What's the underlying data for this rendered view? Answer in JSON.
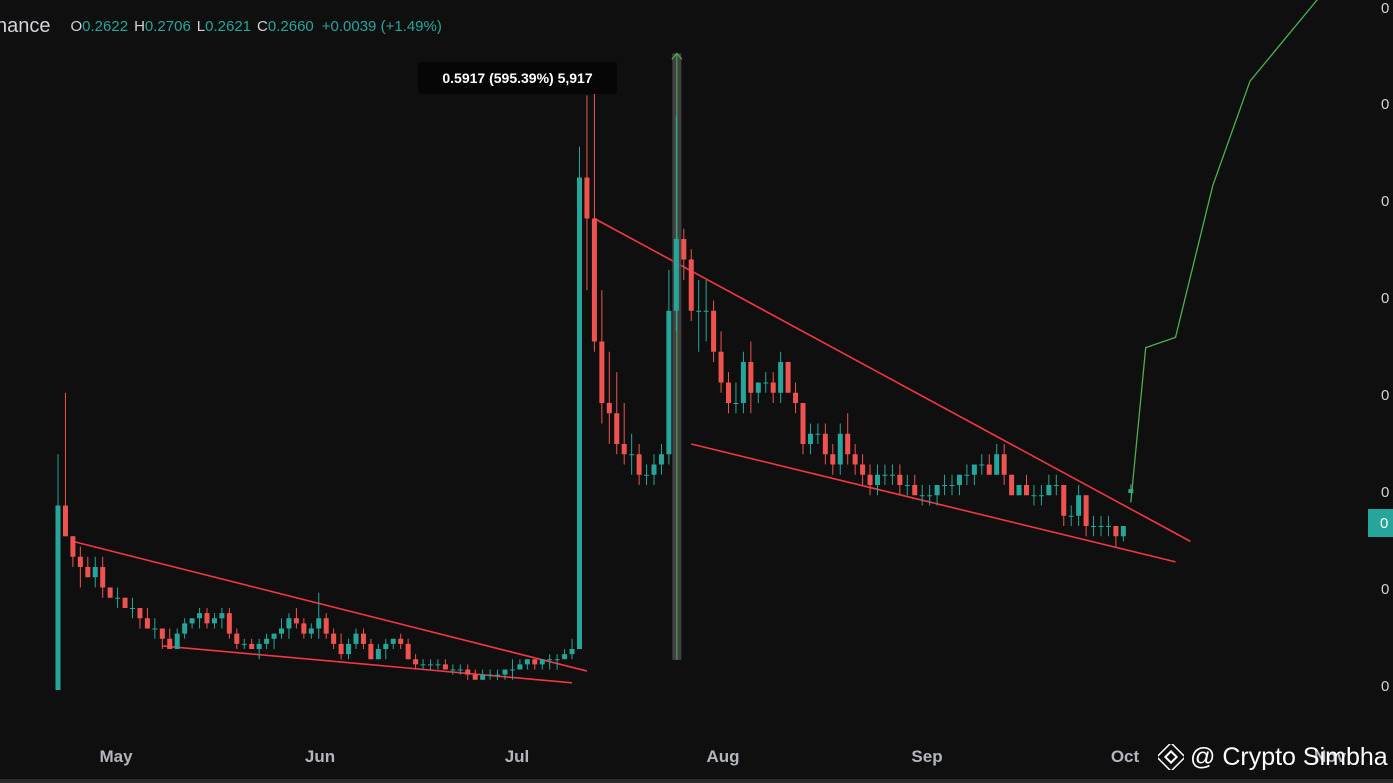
{
  "header": {
    "symbol": "nance",
    "open_label": "O",
    "open": "0.2622",
    "high_label": "H",
    "high": "0.2706",
    "low_label": "L",
    "low": "0.2621",
    "close_label": "C",
    "close": "0.2660",
    "change": "+0.0039 (+1.49%)"
  },
  "measure_label": "0.5917 (595.39%) 5,917",
  "price_tag": "0",
  "watermark": "@ Crypto Simbha",
  "colors": {
    "background": "#0f0f0f",
    "up": "#26a69a",
    "down": "#ef5350",
    "trendline": "#f23645",
    "projection": "#4caf50",
    "text": "#d1d4dc"
  },
  "chart_data": {
    "type": "candlestick",
    "x_tick_labels": [
      "May",
      "Jun",
      "Jul",
      "Aug",
      "Sep",
      "Oct",
      "Nov"
    ],
    "y_tick_labels": [
      "0",
      "0",
      "0",
      "0",
      "0",
      "0",
      "0",
      "0"
    ],
    "y_range": [
      0.05,
      0.8
    ],
    "x_range_days": [
      0,
      214
    ],
    "price_scale": "TradingView, Binance daily",
    "base_price": 0.0994,
    "base_day": 83,
    "measurement": {
      "from_price": 0.0994,
      "to_price": 0.6911,
      "change": 0.5917,
      "percent": 595.39,
      "ticks": 5917
    },
    "candles": [
      [
        0,
        0.07,
        0.3,
        0.07,
        0.25
      ],
      [
        1,
        0.25,
        0.36,
        0.22,
        0.22
      ],
      [
        2,
        0.22,
        0.22,
        0.19,
        0.2
      ],
      [
        3,
        0.2,
        0.21,
        0.17,
        0.19
      ],
      [
        4,
        0.19,
        0.2,
        0.18,
        0.18
      ],
      [
        5,
        0.18,
        0.2,
        0.17,
        0.19
      ],
      [
        6,
        0.19,
        0.2,
        0.16,
        0.17
      ],
      [
        7,
        0.17,
        0.17,
        0.16,
        0.16
      ],
      [
        8,
        0.16,
        0.17,
        0.15,
        0.16
      ],
      [
        9,
        0.16,
        0.16,
        0.15,
        0.15
      ],
      [
        10,
        0.15,
        0.16,
        0.14,
        0.15
      ],
      [
        11,
        0.15,
        0.15,
        0.13,
        0.14
      ],
      [
        12,
        0.14,
        0.15,
        0.13,
        0.13
      ],
      [
        13,
        0.13,
        0.14,
        0.12,
        0.13
      ],
      [
        14,
        0.13,
        0.13,
        0.11,
        0.12
      ],
      [
        15,
        0.12,
        0.13,
        0.11,
        0.11
      ],
      [
        16,
        0.11,
        0.13,
        0.11,
        0.125
      ],
      [
        17,
        0.125,
        0.14,
        0.12,
        0.135
      ],
      [
        18,
        0.135,
        0.14,
        0.13,
        0.14
      ],
      [
        19,
        0.14,
        0.15,
        0.13,
        0.145
      ],
      [
        20,
        0.145,
        0.15,
        0.13,
        0.135
      ],
      [
        21,
        0.135,
        0.145,
        0.13,
        0.14
      ],
      [
        22,
        0.14,
        0.15,
        0.13,
        0.145
      ],
      [
        23,
        0.145,
        0.15,
        0.12,
        0.125
      ],
      [
        24,
        0.125,
        0.13,
        0.11,
        0.115
      ],
      [
        25,
        0.115,
        0.12,
        0.11,
        0.115
      ],
      [
        26,
        0.115,
        0.12,
        0.11,
        0.11
      ],
      [
        27,
        0.11,
        0.12,
        0.1,
        0.115
      ],
      [
        28,
        0.115,
        0.125,
        0.11,
        0.12
      ],
      [
        29,
        0.12,
        0.125,
        0.11,
        0.125
      ],
      [
        30,
        0.125,
        0.14,
        0.12,
        0.13
      ],
      [
        31,
        0.13,
        0.145,
        0.12,
        0.14
      ],
      [
        32,
        0.14,
        0.15,
        0.13,
        0.135
      ],
      [
        33,
        0.135,
        0.14,
        0.12,
        0.125
      ],
      [
        34,
        0.125,
        0.135,
        0.12,
        0.13
      ],
      [
        35,
        0.13,
        0.165,
        0.12,
        0.14
      ],
      [
        36,
        0.14,
        0.145,
        0.12,
        0.125
      ],
      [
        37,
        0.125,
        0.13,
        0.11,
        0.115
      ],
      [
        38,
        0.115,
        0.125,
        0.1,
        0.105
      ],
      [
        39,
        0.105,
        0.12,
        0.1,
        0.115
      ],
      [
        40,
        0.115,
        0.13,
        0.11,
        0.125
      ],
      [
        41,
        0.125,
        0.13,
        0.11,
        0.115
      ],
      [
        42,
        0.115,
        0.12,
        0.1,
        0.1
      ],
      [
        43,
        0.1,
        0.115,
        0.1,
        0.11
      ],
      [
        44,
        0.11,
        0.12,
        0.1,
        0.115
      ],
      [
        45,
        0.115,
        0.12,
        0.11,
        0.12
      ],
      [
        46,
        0.12,
        0.125,
        0.11,
        0.115
      ],
      [
        47,
        0.115,
        0.12,
        0.1,
        0.1
      ],
      [
        48,
        0.1,
        0.105,
        0.09,
        0.095
      ],
      [
        49,
        0.095,
        0.1,
        0.09,
        0.095
      ],
      [
        50,
        0.095,
        0.1,
        0.09,
        0.095
      ],
      [
        51,
        0.095,
        0.1,
        0.09,
        0.095
      ],
      [
        52,
        0.095,
        0.1,
        0.09,
        0.09
      ],
      [
        53,
        0.09,
        0.095,
        0.085,
        0.09
      ],
      [
        54,
        0.09,
        0.095,
        0.085,
        0.09
      ],
      [
        55,
        0.09,
        0.095,
        0.08,
        0.085
      ],
      [
        56,
        0.085,
        0.09,
        0.08,
        0.08
      ],
      [
        57,
        0.08,
        0.09,
        0.08,
        0.085
      ],
      [
        58,
        0.085,
        0.09,
        0.08,
        0.085
      ],
      [
        59,
        0.085,
        0.09,
        0.08,
        0.085
      ],
      [
        60,
        0.085,
        0.09,
        0.08,
        0.09
      ],
      [
        61,
        0.09,
        0.1,
        0.08,
        0.09
      ],
      [
        62,
        0.09,
        0.1,
        0.09,
        0.095
      ],
      [
        63,
        0.095,
        0.1,
        0.09,
        0.1
      ],
      [
        64,
        0.1,
        0.1,
        0.09,
        0.095
      ],
      [
        65,
        0.095,
        0.1,
        0.09,
        0.1
      ],
      [
        66,
        0.1,
        0.105,
        0.09,
        0.1
      ],
      [
        67,
        0.1,
        0.105,
        0.09,
        0.1
      ],
      [
        68,
        0.1,
        0.11,
        0.1,
        0.105
      ],
      [
        69,
        0.105,
        0.12,
        0.1,
        0.11
      ],
      [
        70,
        0.11,
        0.6,
        0.11,
        0.57
      ],
      [
        71,
        0.57,
        0.65,
        0.46,
        0.53
      ],
      [
        72,
        0.53,
        0.66,
        0.4,
        0.41
      ],
      [
        73,
        0.41,
        0.46,
        0.33,
        0.35
      ],
      [
        74,
        0.35,
        0.4,
        0.31,
        0.34
      ],
      [
        75,
        0.34,
        0.38,
        0.3,
        0.31
      ],
      [
        76,
        0.31,
        0.35,
        0.29,
        0.3
      ],
      [
        77,
        0.3,
        0.32,
        0.28,
        0.3
      ],
      [
        78,
        0.3,
        0.31,
        0.27,
        0.28
      ],
      [
        79,
        0.28,
        0.29,
        0.27,
        0.28
      ],
      [
        80,
        0.28,
        0.3,
        0.27,
        0.29
      ],
      [
        81,
        0.29,
        0.31,
        0.28,
        0.3
      ],
      [
        82,
        0.3,
        0.48,
        0.29,
        0.44
      ],
      [
        83,
        0.44,
        0.63,
        0.42,
        0.51
      ],
      [
        84,
        0.51,
        0.52,
        0.47,
        0.49
      ],
      [
        85,
        0.49,
        0.5,
        0.43,
        0.44
      ],
      [
        86,
        0.44,
        0.47,
        0.4,
        0.44
      ],
      [
        87,
        0.44,
        0.47,
        0.41,
        0.44
      ],
      [
        88,
        0.44,
        0.45,
        0.39,
        0.4
      ],
      [
        89,
        0.4,
        0.42,
        0.36,
        0.37
      ],
      [
        90,
        0.37,
        0.38,
        0.34,
        0.35
      ],
      [
        91,
        0.35,
        0.37,
        0.34,
        0.35
      ],
      [
        92,
        0.35,
        0.4,
        0.34,
        0.39
      ],
      [
        93,
        0.39,
        0.41,
        0.34,
        0.36
      ],
      [
        94,
        0.36,
        0.37,
        0.35,
        0.37
      ],
      [
        95,
        0.37,
        0.38,
        0.36,
        0.37
      ],
      [
        96,
        0.37,
        0.38,
        0.35,
        0.36
      ],
      [
        97,
        0.36,
        0.4,
        0.35,
        0.39
      ],
      [
        98,
        0.39,
        0.39,
        0.36,
        0.36
      ],
      [
        99,
        0.36,
        0.37,
        0.34,
        0.35
      ],
      [
        100,
        0.35,
        0.35,
        0.3,
        0.31
      ],
      [
        101,
        0.31,
        0.33,
        0.3,
        0.32
      ],
      [
        102,
        0.32,
        0.33,
        0.31,
        0.32
      ],
      [
        103,
        0.32,
        0.33,
        0.29,
        0.3
      ],
      [
        104,
        0.3,
        0.31,
        0.28,
        0.29
      ],
      [
        105,
        0.29,
        0.33,
        0.28,
        0.32
      ],
      [
        106,
        0.32,
        0.34,
        0.29,
        0.3
      ],
      [
        107,
        0.3,
        0.31,
        0.28,
        0.29
      ],
      [
        108,
        0.29,
        0.3,
        0.27,
        0.28
      ],
      [
        109,
        0.28,
        0.29,
        0.26,
        0.27
      ],
      [
        110,
        0.27,
        0.29,
        0.26,
        0.28
      ],
      [
        111,
        0.28,
        0.29,
        0.27,
        0.28
      ],
      [
        112,
        0.28,
        0.29,
        0.27,
        0.28
      ],
      [
        113,
        0.28,
        0.29,
        0.26,
        0.27
      ],
      [
        114,
        0.27,
        0.28,
        0.26,
        0.27
      ],
      [
        115,
        0.27,
        0.28,
        0.26,
        0.26
      ],
      [
        116,
        0.26,
        0.27,
        0.25,
        0.26
      ],
      [
        117,
        0.26,
        0.27,
        0.25,
        0.26
      ],
      [
        118,
        0.26,
        0.27,
        0.25,
        0.27
      ],
      [
        119,
        0.27,
        0.28,
        0.26,
        0.27
      ],
      [
        120,
        0.27,
        0.28,
        0.26,
        0.27
      ],
      [
        121,
        0.27,
        0.28,
        0.26,
        0.28
      ],
      [
        122,
        0.28,
        0.29,
        0.27,
        0.28
      ],
      [
        123,
        0.28,
        0.29,
        0.27,
        0.29
      ],
      [
        124,
        0.29,
        0.3,
        0.28,
        0.29
      ],
      [
        125,
        0.29,
        0.3,
        0.28,
        0.28
      ],
      [
        126,
        0.28,
        0.31,
        0.28,
        0.3
      ],
      [
        127,
        0.3,
        0.31,
        0.27,
        0.28
      ],
      [
        128,
        0.28,
        0.28,
        0.26,
        0.26
      ],
      [
        129,
        0.26,
        0.27,
        0.26,
        0.27
      ],
      [
        130,
        0.27,
        0.28,
        0.26,
        0.26
      ],
      [
        131,
        0.26,
        0.27,
        0.25,
        0.26
      ],
      [
        132,
        0.26,
        0.27,
        0.25,
        0.26
      ],
      [
        133,
        0.26,
        0.28,
        0.26,
        0.27
      ],
      [
        134,
        0.27,
        0.28,
        0.26,
        0.27
      ],
      [
        135,
        0.27,
        0.27,
        0.23,
        0.24
      ],
      [
        136,
        0.24,
        0.25,
        0.23,
        0.24
      ],
      [
        137,
        0.24,
        0.27,
        0.23,
        0.26
      ],
      [
        138,
        0.26,
        0.26,
        0.22,
        0.23
      ],
      [
        139,
        0.23,
        0.24,
        0.22,
        0.23
      ],
      [
        140,
        0.23,
        0.24,
        0.22,
        0.23
      ],
      [
        141,
        0.23,
        0.24,
        0.22,
        0.23
      ],
      [
        142,
        0.23,
        0.23,
        0.21,
        0.22
      ],
      [
        143,
        0.22,
        0.23,
        0.215,
        0.23
      ],
      [
        144,
        0.2622,
        0.2706,
        0.2621,
        0.266
      ]
    ],
    "trendlines": [
      {
        "points": [
          [
            2,
            0.215
          ],
          [
            71,
            0.0885
          ]
        ]
      },
      {
        "points": [
          [
            14,
            0.113
          ],
          [
            69,
            0.077
          ]
        ]
      },
      {
        "points": [
          [
            72,
            0.53
          ],
          [
            152,
            0.215
          ]
        ]
      },
      {
        "points": [
          [
            85,
            0.31
          ],
          [
            150,
            0.195
          ]
        ]
      }
    ],
    "projection_path": [
      [
        144,
        0.253
      ],
      [
        146,
        0.404
      ],
      [
        150,
        0.414
      ],
      [
        155,
        0.562
      ],
      [
        160,
        0.664
      ],
      [
        170,
        0.752
      ],
      [
        175,
        0.767
      ]
    ]
  }
}
